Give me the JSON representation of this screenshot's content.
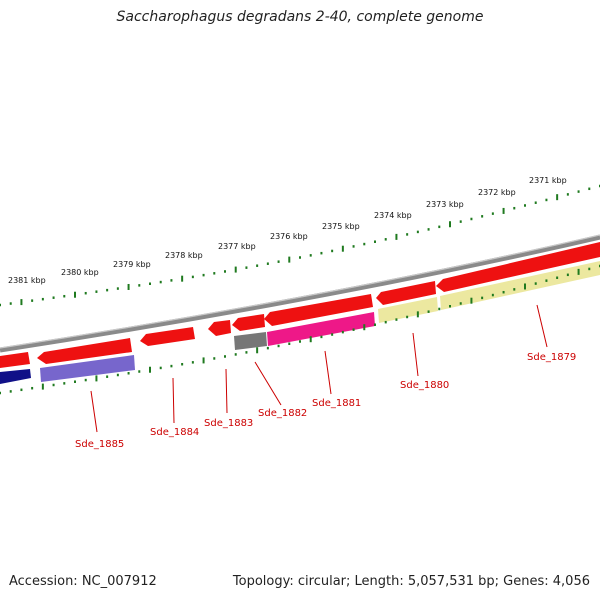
{
  "title": "Saccharophagus degradans 2-40, complete genome",
  "footer": {
    "accession": "Accession: NC_007912",
    "topology": "Topology: circular; Length: 5,057,531 bp; Genes: 4,056"
  },
  "colors": {
    "backbone": "#8a8a8a",
    "tick": "#1f7a1f",
    "label": "#cc0000",
    "gene_red": "#ee1111",
    "gene_pink": "#ee1888",
    "gene_purple": "#7766cc",
    "gene_navy": "#101088",
    "gene_gray": "#777777",
    "gene_yellow": "#ece8a0"
  },
  "scale_labels": [
    "2381 kbp",
    "2380 kbp",
    "2379 kbp",
    "2378 kbp",
    "2377 kbp",
    "2376 kbp",
    "2375 kbp",
    "2374 kbp",
    "2373 kbp",
    "2372 kbp",
    "2371 kbp"
  ],
  "gene_labels": [
    "Sde_1885",
    "Sde_1884",
    "Sde_1883",
    "Sde_1882",
    "Sde_1881",
    "Sde_1880",
    "Sde_1879"
  ]
}
